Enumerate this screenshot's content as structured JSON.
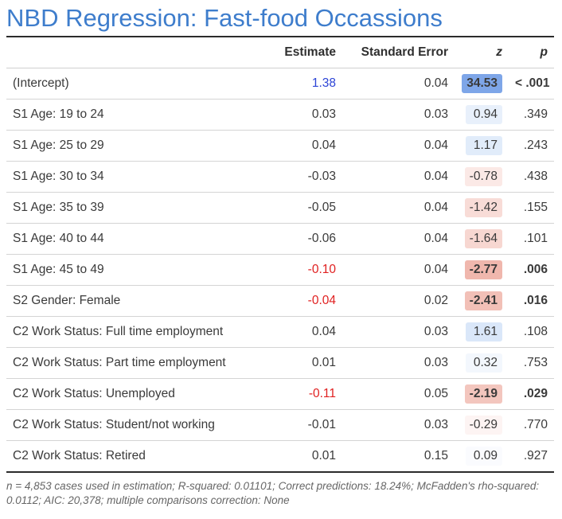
{
  "title": "NBD Regression: Fast-food Occassions",
  "columns": {
    "label": "",
    "estimate": "Estimate",
    "se": "Standard Error",
    "z": "z",
    "p": "p"
  },
  "rows": [
    {
      "label": "(Intercept)",
      "estimate": "1.38",
      "est_color": "pos",
      "se": "0.04",
      "z": "34.53",
      "z_bg": "#7ea6e8",
      "z_bold": true,
      "p": "< .001",
      "p_bold": true
    },
    {
      "label": "S1 Age: 19 to 24",
      "estimate": "0.03",
      "est_color": "",
      "se": "0.03",
      "z": "0.94",
      "z_bg": "#e8f0fb",
      "z_bold": false,
      "p": ".349",
      "p_bold": false
    },
    {
      "label": "S1 Age: 25 to 29",
      "estimate": "0.04",
      "est_color": "",
      "se": "0.04",
      "z": "1.17",
      "z_bg": "#e1ecfa",
      "z_bold": false,
      "p": ".243",
      "p_bold": false
    },
    {
      "label": "S1 Age: 30 to 34",
      "estimate": "-0.03",
      "est_color": "",
      "se": "0.04",
      "z": "-0.78",
      "z_bg": "#fbe9e6",
      "z_bold": false,
      "p": ".438",
      "p_bold": false
    },
    {
      "label": "S1 Age: 35 to 39",
      "estimate": "-0.05",
      "est_color": "",
      "se": "0.04",
      "z": "-1.42",
      "z_bg": "#f8dcd7",
      "z_bold": false,
      "p": ".155",
      "p_bold": false
    },
    {
      "label": "S1 Age: 40 to 44",
      "estimate": "-0.06",
      "est_color": "",
      "se": "0.04",
      "z": "-1.64",
      "z_bg": "#f7d7d1",
      "z_bold": false,
      "p": ".101",
      "p_bold": false
    },
    {
      "label": "S1 Age: 45 to 49",
      "estimate": "-0.10",
      "est_color": "neg",
      "se": "0.04",
      "z": "-2.77",
      "z_bg": "#f0b7ad",
      "z_bold": true,
      "p": ".006",
      "p_bold": true
    },
    {
      "label": "S2 Gender: Female",
      "estimate": "-0.04",
      "est_color": "neg",
      "se": "0.02",
      "z": "-2.41",
      "z_bg": "#f2c0b7",
      "z_bold": true,
      "p": ".016",
      "p_bold": true
    },
    {
      "label": "C2 Work Status: Full time employment",
      "estimate": "0.04",
      "est_color": "",
      "se": "0.03",
      "z": "1.61",
      "z_bg": "#dae7f9",
      "z_bold": false,
      "p": ".108",
      "p_bold": false
    },
    {
      "label": "C2 Work Status: Part time employment",
      "estimate": "0.01",
      "est_color": "",
      "se": "0.03",
      "z": "0.32",
      "z_bg": "#f3f7fd",
      "z_bold": false,
      "p": ".753",
      "p_bold": false
    },
    {
      "label": "C2 Work Status: Unemployed",
      "estimate": "-0.11",
      "est_color": "neg",
      "se": "0.05",
      "z": "-2.19",
      "z_bg": "#f3c6be",
      "z_bold": true,
      "p": ".029",
      "p_bold": true
    },
    {
      "label": "C2 Work Status: Student/not working",
      "estimate": "-0.01",
      "est_color": "",
      "se": "0.03",
      "z": "-0.29",
      "z_bg": "#fdf4f3",
      "z_bold": false,
      "p": ".770",
      "p_bold": false
    },
    {
      "label": "C2 Work Status: Retired",
      "estimate": "0.01",
      "est_color": "",
      "se": "0.15",
      "z": "0.09",
      "z_bg": "#fafbfe",
      "z_bold": false,
      "p": ".927",
      "p_bold": false
    }
  ],
  "footnote": "n = 4,853 cases used in estimation; R-squared: 0.01101; Correct predictions: 18.24%; McFadden's rho-squared: 0.0112; AIC: 20,378; multiple comparisons correction: None"
}
